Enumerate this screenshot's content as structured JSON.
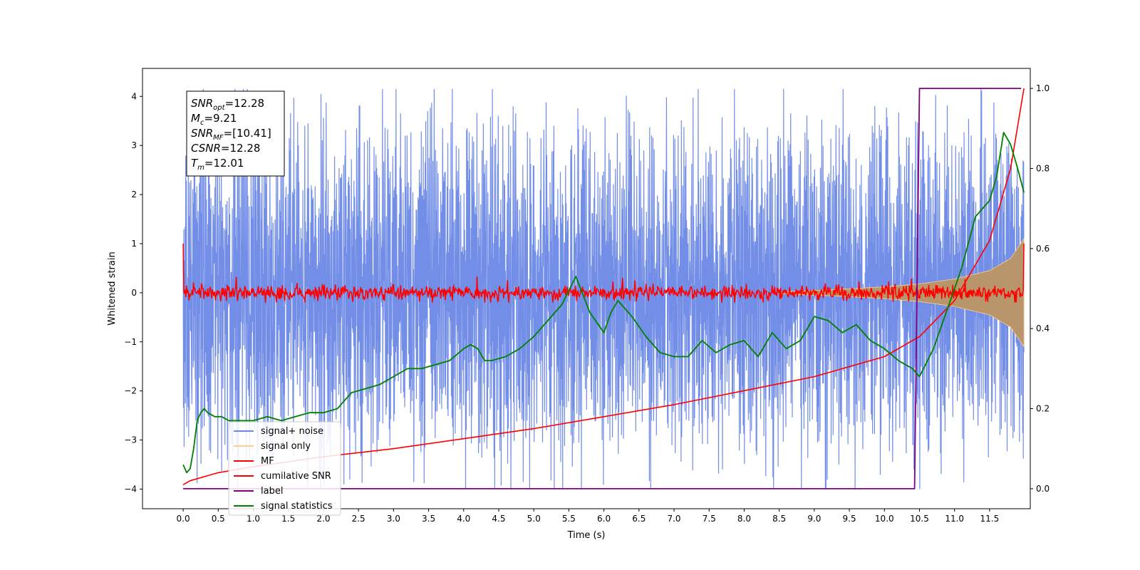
{
  "chart_data": {
    "type": "line",
    "xlabel": "Time (s)",
    "ylabel": "Whitened strain",
    "ylabel_right": "",
    "xlim": [
      -0.58,
      12.08
    ],
    "ylim": [
      -4.4,
      4.57
    ],
    "ylim_right": [
      -0.05,
      1.05
    ],
    "x_ticks": [
      "0.0",
      "0.5",
      "1.0",
      "1.5",
      "2.0",
      "2.5",
      "3.0",
      "3.5",
      "4.0",
      "4.5",
      "5.0",
      "5.5",
      "6.0",
      "6.5",
      "7.0",
      "7.5",
      "8.0",
      "8.5",
      "9.0",
      "9.5",
      "10.0",
      "10.5",
      "11.0",
      "11.5"
    ],
    "y_ticks": [
      "−4",
      "−3",
      "−2",
      "−1",
      "0",
      "1",
      "2",
      "3",
      "4"
    ],
    "y_ticks_right": [
      "0.0",
      "0.2",
      "0.4",
      "0.6",
      "0.8",
      "1.0"
    ],
    "grid": false,
    "legend_position": "lower-left",
    "colors": {
      "signal_noise": "#6b88e6",
      "signal_only": "#fdd08a",
      "signal_only_fill": "#b8956a",
      "mf": "#ff0000",
      "cumulative_snr": "#ff0000",
      "label": "#800080",
      "statistics": "#008000"
    },
    "annotation": {
      "lines": [
        {
          "base": "SNR",
          "sub": "opt",
          "value": "=12.28"
        },
        {
          "base": "M",
          "sub": "c",
          "value": "=9.21"
        },
        {
          "base": "SNR",
          "sub": "MF",
          "value": "=[10.41]"
        },
        {
          "base": "CSNR",
          "sub": "",
          "value": "=12.28"
        },
        {
          "base": "T",
          "sub": "m",
          "value": "=12.01"
        }
      ]
    },
    "series": [
      {
        "name": "signal+ noise",
        "axis": "left",
        "kind": "noise",
        "x_range": [
          0.0,
          11.99
        ],
        "typical_range": [
          -2.0,
          2.0
        ],
        "extremes": [
          -4.0,
          4.15
        ]
      },
      {
        "name": "signal only",
        "axis": "left",
        "kind": "chirp-envelope",
        "x": [
          8.5,
          9.0,
          9.5,
          10.0,
          10.5,
          11.0,
          11.5,
          11.8,
          11.99
        ],
        "amplitude": [
          0.02,
          0.05,
          0.08,
          0.12,
          0.18,
          0.28,
          0.45,
          0.7,
          1.1
        ]
      },
      {
        "name": "MF",
        "axis": "left",
        "kind": "noise",
        "x_range": [
          0.0,
          11.99
        ],
        "typical_range": [
          -0.1,
          0.1
        ],
        "extremes": [
          -0.2,
          0.35
        ],
        "endpoints": [
          1.0,
          1.0
        ]
      },
      {
        "name": "cumilative SNR",
        "axis": "right",
        "x": [
          0.0,
          0.1,
          0.5,
          1.0,
          2.0,
          3.0,
          4.0,
          5.0,
          6.0,
          7.0,
          8.0,
          9.0,
          10.0,
          10.5,
          11.0,
          11.5,
          11.8,
          11.99
        ],
        "values": [
          0.01,
          0.02,
          0.04,
          0.055,
          0.08,
          0.1,
          0.125,
          0.15,
          0.18,
          0.21,
          0.245,
          0.28,
          0.33,
          0.38,
          0.47,
          0.62,
          0.8,
          1.0
        ]
      },
      {
        "name": "label",
        "axis": "right",
        "x": [
          0.0,
          10.43,
          10.5,
          11.95
        ],
        "values": [
          0.0,
          0.0,
          1.0,
          1.0
        ]
      },
      {
        "name": "signal statistics",
        "axis": "right",
        "x": [
          0.0,
          0.05,
          0.1,
          0.15,
          0.2,
          0.25,
          0.3,
          0.35,
          0.45,
          0.55,
          0.65,
          0.8,
          1.0,
          1.2,
          1.4,
          1.6,
          1.8,
          2.0,
          2.2,
          2.4,
          2.6,
          2.8,
          3.0,
          3.2,
          3.4,
          3.6,
          3.8,
          4.0,
          4.1,
          4.2,
          4.3,
          4.4,
          4.6,
          4.8,
          5.0,
          5.2,
          5.4,
          5.6,
          5.8,
          6.0,
          6.1,
          6.2,
          6.4,
          6.6,
          6.8,
          7.0,
          7.2,
          7.4,
          7.6,
          7.8,
          8.0,
          8.2,
          8.4,
          8.6,
          8.8,
          9.0,
          9.2,
          9.4,
          9.6,
          9.8,
          10.0,
          10.2,
          10.4,
          10.5,
          10.7,
          10.9,
          11.1,
          11.3,
          11.5,
          11.6,
          11.7,
          11.8,
          11.9,
          11.99
        ],
        "values": [
          0.06,
          0.04,
          0.05,
          0.1,
          0.17,
          0.19,
          0.2,
          0.19,
          0.18,
          0.18,
          0.17,
          0.17,
          0.17,
          0.18,
          0.17,
          0.18,
          0.19,
          0.19,
          0.2,
          0.24,
          0.25,
          0.26,
          0.28,
          0.3,
          0.3,
          0.31,
          0.32,
          0.35,
          0.36,
          0.35,
          0.32,
          0.32,
          0.33,
          0.35,
          0.38,
          0.42,
          0.46,
          0.53,
          0.44,
          0.39,
          0.44,
          0.47,
          0.43,
          0.38,
          0.34,
          0.33,
          0.33,
          0.37,
          0.34,
          0.36,
          0.37,
          0.33,
          0.39,
          0.35,
          0.37,
          0.43,
          0.42,
          0.39,
          0.41,
          0.37,
          0.35,
          0.32,
          0.3,
          0.28,
          0.35,
          0.45,
          0.55,
          0.68,
          0.72,
          0.78,
          0.89,
          0.86,
          0.8,
          0.74
        ]
      }
    ]
  }
}
